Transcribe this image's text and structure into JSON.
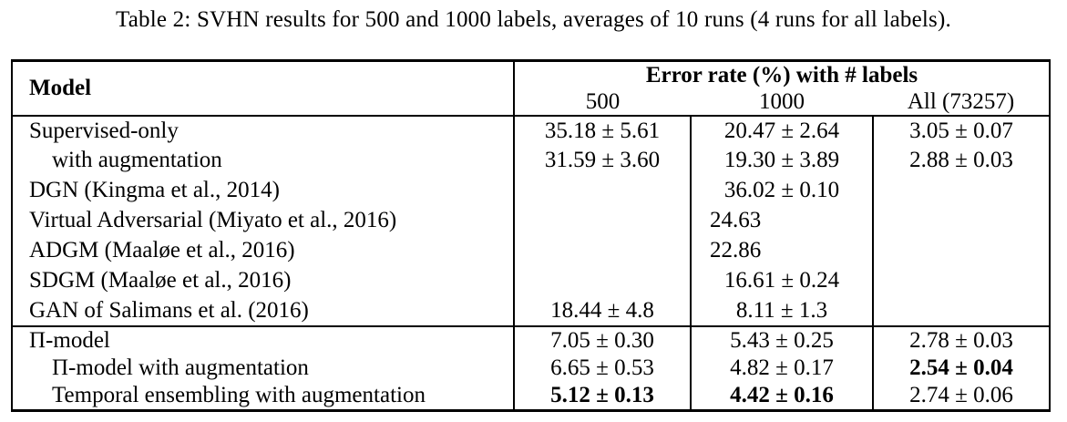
{
  "caption": "Table 2: SVHN results for 500 and 1000 labels, averages of 10 runs (4 runs for all labels).",
  "table": {
    "header": {
      "model_label": "Model",
      "group_label": "Error rate (%) with # labels",
      "columns": [
        "500",
        "1000",
        "All (73257)"
      ]
    },
    "rows": [
      {
        "model": "Supervised-only",
        "values": [
          "35.18 ± 5.61",
          "20.47 ± 2.64",
          "3.05 ± 0.07"
        ],
        "bold": [
          false,
          false,
          false
        ]
      },
      {
        "model": "with augmentation",
        "values": [
          "31.59 ± 3.60",
          "19.30 ± 3.89",
          "2.88 ± 0.03"
        ],
        "bold": [
          false,
          false,
          false
        ]
      },
      {
        "model": "DGN (Kingma et al., 2014)",
        "values": [
          "",
          "36.02 ± 0.10",
          ""
        ],
        "bold": [
          false,
          false,
          false
        ]
      },
      {
        "model": "Virtual Adversarial (Miyato et al., 2016)",
        "values": [
          "",
          "24.63",
          ""
        ],
        "bold": [
          false,
          false,
          false
        ]
      },
      {
        "model": "ADGM (Maaløe et al., 2016)",
        "values": [
          "",
          "22.86",
          ""
        ],
        "bold": [
          false,
          false,
          false
        ]
      },
      {
        "model": "SDGM (Maaløe et al., 2016)",
        "values": [
          "",
          "16.61 ± 0.24",
          ""
        ],
        "bold": [
          false,
          false,
          false
        ]
      },
      {
        "model": "GAN of Salimans et al. (2016)",
        "values": [
          "18.44 ± 4.8",
          "8.11 ± 1.3",
          ""
        ],
        "bold": [
          false,
          false,
          false
        ]
      },
      {
        "model": "Π-model",
        "values": [
          "7.05 ± 0.30",
          "5.43 ± 0.25",
          "2.78 ± 0.03"
        ],
        "bold": [
          false,
          false,
          false
        ]
      },
      {
        "model": "Π-model with augmentation",
        "values": [
          "6.65 ± 0.53",
          "4.82 ± 0.17",
          "2.54 ± 0.04"
        ],
        "bold": [
          false,
          false,
          true
        ]
      },
      {
        "model": "Temporal ensembling with augmentation",
        "values": [
          "5.12 ± 0.13",
          "4.42 ± 0.16",
          "2.74 ± 0.06"
        ],
        "bold": [
          true,
          true,
          false
        ]
      }
    ]
  }
}
